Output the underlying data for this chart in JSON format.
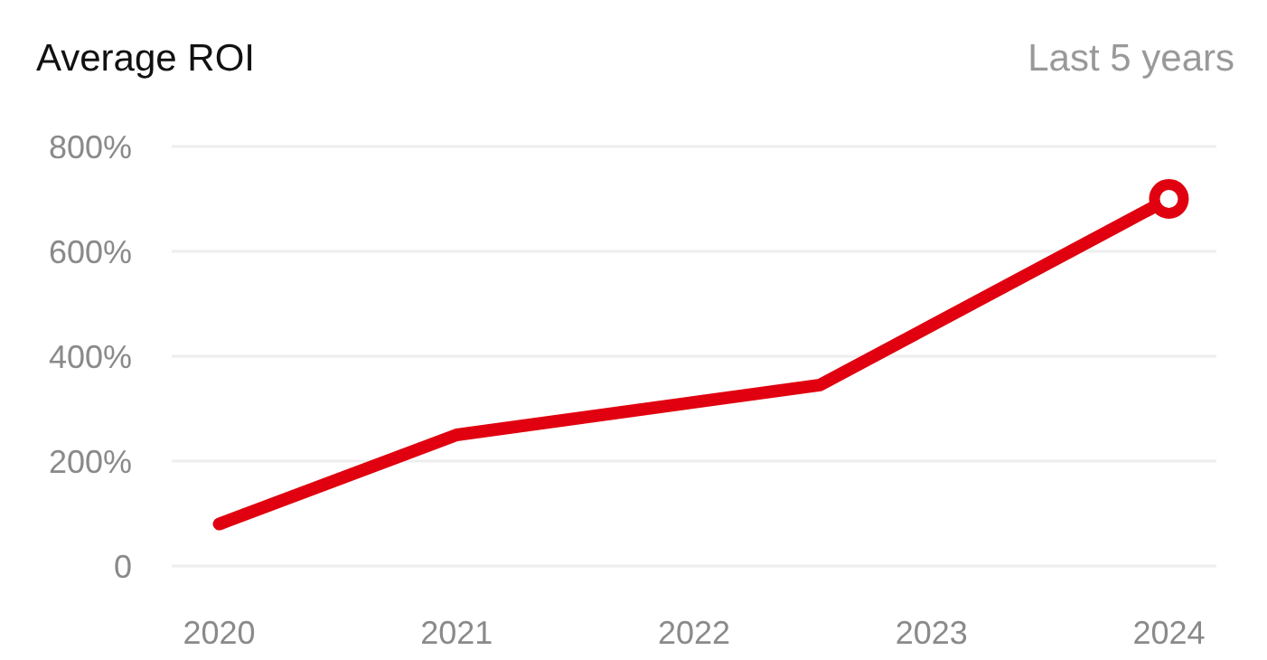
{
  "chart_data": {
    "type": "line",
    "title": "Average ROI",
    "subtitle": "Last 5 years",
    "x": [
      2020,
      2021,
      2022.53,
      2024
    ],
    "series": [
      {
        "color": "#e0000f",
        "values": [
          80,
          250,
          345,
          700
        ],
        "marker": "none"
      },
      {
        "type": "scatter",
        "color": "#e0000f",
        "x": [
          2024
        ],
        "values": [
          700
        ],
        "marker": "circle"
      }
    ],
    "xlim": [
      2019.8,
      2024.2
    ],
    "xticks": [
      2020,
      2021,
      2022,
      2023,
      2024
    ],
    "ylim": [
      0,
      800
    ],
    "yticks": [
      0,
      {
        "value": 200,
        "label": "200%"
      },
      {
        "value": 400,
        "label": "400%"
      },
      {
        "value": 600,
        "label": "600%"
      },
      {
        "value": 800,
        "label": "800%"
      }
    ],
    "grid": "y"
  }
}
